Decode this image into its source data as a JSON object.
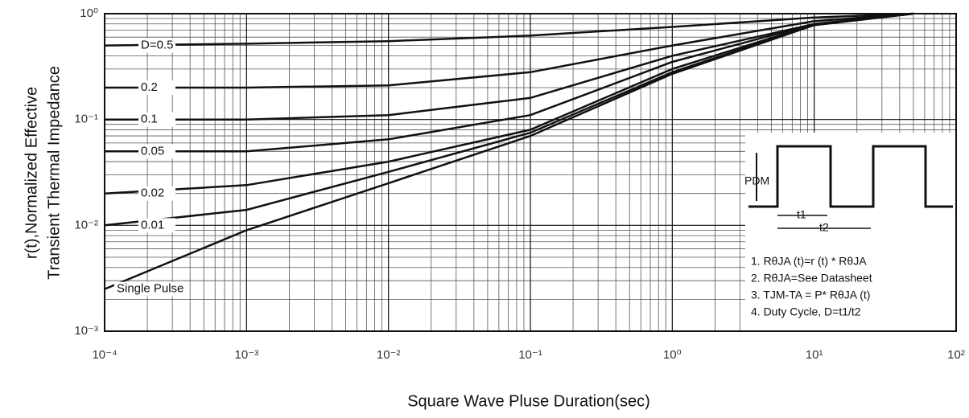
{
  "chart_data": {
    "type": "line",
    "log_x": true,
    "log_y": true,
    "grid": true,
    "minor_grid": true,
    "x_label": "Square Wave Pluse Duration(sec)",
    "y_label": [
      "r(t),Normalized Effective",
      "Transient Thermal Impedance"
    ],
    "xlim": [
      0.0001,
      100
    ],
    "ylim": [
      0.001,
      1
    ],
    "xticks": [
      {
        "value": 0.0001,
        "label": "10⁻⁴"
      },
      {
        "value": 0.001,
        "label": "10⁻³"
      },
      {
        "value": 0.01,
        "label": "10⁻²"
      },
      {
        "value": 0.1,
        "label": "10⁻¹"
      },
      {
        "value": 1,
        "label": "10⁰"
      },
      {
        "value": 10,
        "label": "10¹"
      },
      {
        "value": 100,
        "label": "10²"
      }
    ],
    "yticks": [
      {
        "value": 0.001,
        "label": "10⁻³"
      },
      {
        "value": 0.01,
        "label": "10⁻²"
      },
      {
        "value": 0.1,
        "label": "10⁻¹"
      },
      {
        "value": 1,
        "label": "10⁰"
      }
    ],
    "x": [
      0.0001,
      0.001,
      0.01,
      0.1,
      1,
      10,
      50
    ],
    "series": [
      {
        "name": "D=0.5",
        "color": "#111",
        "values": [
          0.5,
          0.52,
          0.55,
          0.62,
          0.75,
          0.92,
          1
        ]
      },
      {
        "name": "0.2",
        "color": "#111",
        "values": [
          0.2,
          0.2,
          0.21,
          0.28,
          0.5,
          0.85,
          1
        ]
      },
      {
        "name": "0.1",
        "color": "#111",
        "values": [
          0.1,
          0.1,
          0.11,
          0.16,
          0.4,
          0.8,
          1
        ]
      },
      {
        "name": "0.05",
        "color": "#111",
        "values": [
          0.05,
          0.05,
          0.065,
          0.11,
          0.35,
          0.8,
          1
        ]
      },
      {
        "name": "0.02",
        "color": "#111",
        "values": [
          0.02,
          0.024,
          0.04,
          0.08,
          0.3,
          0.79,
          1
        ]
      },
      {
        "name": "0.01",
        "color": "#111",
        "values": [
          0.01,
          0.014,
          0.032,
          0.075,
          0.28,
          0.78,
          1
        ]
      },
      {
        "name": "Single Pulse",
        "color": "#111",
        "values": [
          0.0025,
          0.009,
          0.025,
          0.07,
          0.27,
          0.78,
          1
        ]
      }
    ],
    "inset": {
      "pdm": "PDM",
      "t1": "t1",
      "t2": "t2",
      "notes": [
        "1. RθJA (t)=r (t) * RθJA",
        "2. RθJA=See Datasheet",
        "3. TJM-TA = P* RθJA (t)",
        "4. Duty Cycle, D=t1/t2"
      ]
    }
  }
}
